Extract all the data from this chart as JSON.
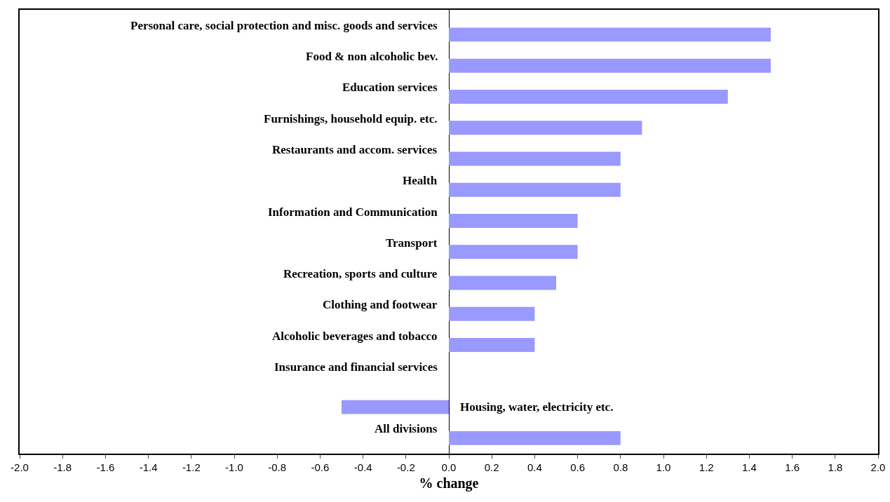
{
  "chart_data": {
    "type": "bar",
    "orientation": "horizontal",
    "xlabel": "% change",
    "categories": [
      "Personal care, social protection and misc. goods and services",
      "Food & non alcoholic bev.",
      "Education services",
      "Furnishings, household equip. etc.",
      "Restaurants and accom. services",
      "Health",
      "Information and Communication",
      "Transport",
      "Recreation, sports and culture",
      "Clothing and footwear",
      "Alcoholic beverages and tobacco",
      "Insurance and financial services",
      "Housing, water, electricity etc.",
      "All divisions"
    ],
    "values": [
      1.5,
      1.5,
      1.3,
      0.9,
      0.8,
      0.8,
      0.6,
      0.6,
      0.5,
      0.4,
      0.4,
      0,
      -0.5,
      0.8
    ],
    "color": "#9999ff",
    "xlim": [
      -2,
      2
    ],
    "xticks": [
      {
        "value": -2,
        "label": "-2.0"
      },
      {
        "value": -1.8,
        "label": "-1.8"
      },
      {
        "value": -1.6,
        "label": "-1.6"
      },
      {
        "value": -1.4,
        "label": "-1.4"
      },
      {
        "value": -1.2,
        "label": "-1.2"
      },
      {
        "value": -1,
        "label": "-1.0"
      },
      {
        "value": -0.8,
        "label": "-0.8"
      },
      {
        "value": -0.6,
        "label": "-0.6"
      },
      {
        "value": -0.4,
        "label": "-0.4"
      },
      {
        "value": -0.2,
        "label": "-0.2"
      },
      {
        "value": 0,
        "label": "0.0"
      },
      {
        "value": 0.2,
        "label": "0.2"
      },
      {
        "value": 0.4,
        "label": "0.4"
      },
      {
        "value": 0.6,
        "label": "0.6"
      },
      {
        "value": 0.8,
        "label": "0.8"
      },
      {
        "value": 1,
        "label": "1.0"
      },
      {
        "value": 1.2,
        "label": "1.2"
      },
      {
        "value": 1.4,
        "label": "1.4"
      },
      {
        "value": 1.6,
        "label": "1.6"
      },
      {
        "value": 1.8,
        "label": "1.8"
      },
      {
        "value": 2,
        "label": "2.0"
      }
    ],
    "tick_labels": "x"
  }
}
